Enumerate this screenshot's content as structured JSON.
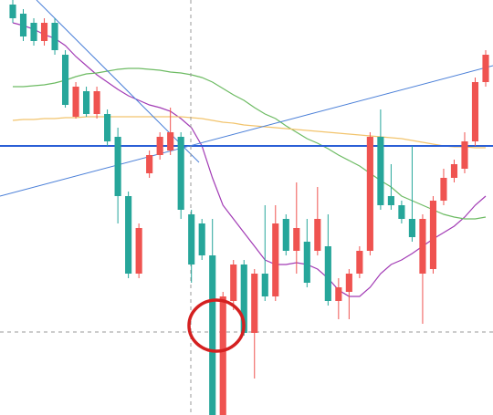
{
  "chart_data": {
    "type": "candlestick",
    "ylim": [
      0,
      455
    ],
    "up_color": "#ef5350",
    "down_color": "#26a69a",
    "open": [
      450,
      440,
      430,
      410,
      430,
      395,
      327,
      355,
      330,
      330,
      305,
      240,
      155,
      265,
      285,
      290,
      305,
      220,
      210,
      175,
      0,
      125,
      165,
      90,
      155,
      130,
      215,
      180,
      190,
      180,
      185,
      125,
      135,
      155,
      180,
      305,
      240,
      230,
      215,
      155,
      160,
      235,
      260,
      270,
      300,
      365
    ],
    "high": [
      455,
      445,
      435,
      435,
      435,
      400,
      365,
      360,
      360,
      335,
      315,
      245,
      210,
      290,
      310,
      337,
      310,
      225,
      215,
      215,
      135,
      170,
      170,
      160,
      230,
      230,
      220,
      255,
      215,
      250,
      220,
      150,
      160,
      185,
      310,
      335,
      275,
      235,
      295,
      220,
      240,
      270,
      280,
      310,
      370,
      400
    ],
    "low": [
      430,
      410,
      405,
      405,
      395,
      337,
      325,
      327,
      325,
      295,
      210,
      150,
      150,
      260,
      280,
      285,
      215,
      145,
      170,
      0,
      0,
      115,
      87,
      40,
      125,
      125,
      175,
      155,
      140,
      175,
      120,
      105,
      105,
      150,
      175,
      225,
      225,
      210,
      190,
      100,
      155,
      230,
      255,
      265,
      295,
      360
    ],
    "close": [
      435,
      415,
      410,
      430,
      400,
      340,
      360,
      330,
      355,
      300,
      240,
      155,
      205,
      285,
      305,
      310,
      225,
      165,
      175,
      0,
      130,
      165,
      90,
      155,
      130,
      210,
      180,
      205,
      145,
      215,
      125,
      140,
      155,
      180,
      305,
      230,
      230,
      215,
      195,
      215,
      235,
      260,
      275,
      300,
      365,
      395
    ],
    "series": [
      {
        "color": "#a23bb5",
        "values": [
          430,
          427,
          423,
          417,
          413,
          405,
          393,
          383,
          373,
          365,
          357,
          350,
          345,
          340,
          337,
          333,
          325,
          315,
          295,
          260,
          230,
          215,
          200,
          185,
          170,
          165,
          165,
          167,
          165,
          160,
          150,
          137,
          130,
          130,
          140,
          155,
          165,
          170,
          177,
          185,
          193,
          200,
          207,
          217,
          230,
          240
        ]
      },
      {
        "color": "#6dbb63",
        "values": [
          360,
          360,
          361,
          362,
          364,
          367,
          371,
          374,
          375,
          377,
          379,
          380,
          380,
          379,
          378,
          376,
          375,
          373,
          370,
          365,
          358,
          351,
          345,
          337,
          330,
          325,
          317,
          310,
          303,
          298,
          292,
          285,
          279,
          273,
          265,
          257,
          250,
          240,
          235,
          230,
          225,
          220,
          217,
          215,
          215,
          217
        ]
      },
      {
        "color": "#f2c46d",
        "values": [
          323,
          324,
          324,
          325,
          325,
          326,
          326,
          327,
          327,
          327,
          327,
          327,
          327,
          327,
          327,
          327,
          327,
          326,
          325,
          323,
          321,
          320,
          318,
          317,
          316,
          315,
          314,
          313,
          312,
          311,
          310,
          309,
          308,
          307,
          306,
          305,
          304,
          303,
          301,
          299,
          297,
          295,
          294,
          294,
          293,
          293
        ]
      }
    ],
    "hline": {
      "value": 295,
      "color": "#2a5fd6"
    }
  }
}
